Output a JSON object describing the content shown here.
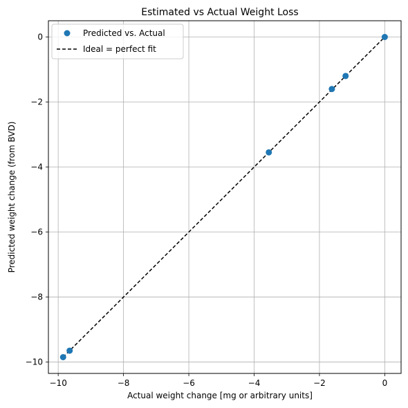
{
  "chart_data": {
    "type": "scatter",
    "title": "Estimated vs Actual Weight Loss",
    "xlabel": "Actual weight change [mg or arbitrary units]",
    "ylabel": "Predicted weight change (from BVD)",
    "xlim": [
      -10.3,
      0.5
    ],
    "ylim": [
      -10.35,
      0.5
    ],
    "xticks": [
      -10,
      -8,
      -6,
      -4,
      -2,
      0
    ],
    "yticks": [
      -10,
      -8,
      -6,
      -4,
      -2,
      0
    ],
    "xtick_labels": [
      "−10",
      "−8",
      "−6",
      "−4",
      "−2",
      "0"
    ],
    "ytick_labels": [
      "−10",
      "−8",
      "−6",
      "−4",
      "−2",
      "0"
    ],
    "grid": true,
    "legend_position": "top-left",
    "series": [
      {
        "name": "Predicted vs. Actual",
        "kind": "scatter",
        "color": "#1f77b4",
        "x": [
          -9.85,
          -9.65,
          -3.55,
          -1.62,
          -1.2,
          0.0
        ],
        "y": [
          -9.85,
          -9.65,
          -3.55,
          -1.6,
          -1.2,
          0.0
        ]
      },
      {
        "name": "Ideal = perfect fit",
        "kind": "line",
        "style": "dashed",
        "color": "#000000",
        "x": [
          -9.85,
          0.0
        ],
        "y": [
          -9.85,
          0.0
        ]
      }
    ]
  }
}
